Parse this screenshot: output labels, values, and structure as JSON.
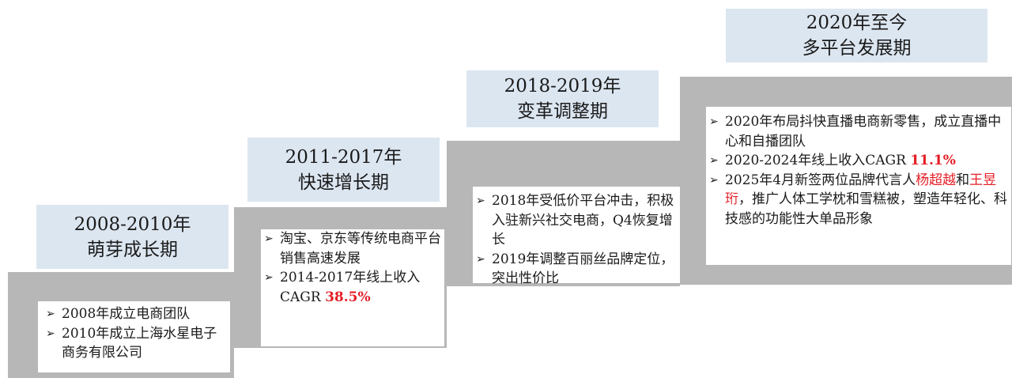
{
  "colors": {
    "step_gray": "#b7b7b7",
    "title_fill": "#dce6f1",
    "highlight_red": "#e41e26"
  },
  "stages": [
    {
      "title_line1": "2008-2010年",
      "title_line2": "萌芽成长期",
      "bullets": [
        "2008年成立电商团队",
        "2010年成立上海水星电子商务有限公司"
      ]
    },
    {
      "title_line1": "2011-2017年",
      "title_line2": "快速增长期",
      "bullets": [
        "淘宝、京东等传统电商平台销售高速发展",
        "2014-2017年线上收入CAGR "
      ],
      "cagr": "38.5%"
    },
    {
      "title_line1": "2018-2019年",
      "title_line2": "变革调整期",
      "bullets": [
        "2018年受低价平台冲击，积极入驻新兴社交电商，Q4恢复增长",
        "2019年调整百丽丝品牌定位，突出性价比"
      ]
    },
    {
      "title_line1": "2020年至今",
      "title_line2": "多平台发展期",
      "bullets": [
        "2020年布局抖快直播电商新零售，成立直播中心和自播团队",
        "2020-2024年线上收入CAGR "
      ],
      "cagr": "11.1%",
      "bullet3_prefix": "2025年4月新签两位品牌代言人",
      "spokesperson_1": "杨超越",
      "bullet3_and": "和",
      "spokesperson_2": "王昱珩",
      "bullet3_suffix": "，推广人体工学枕和雪糕被，塑造年轻化、科技感的功能性大单品形象"
    }
  ],
  "bullet_glyph": "➢"
}
